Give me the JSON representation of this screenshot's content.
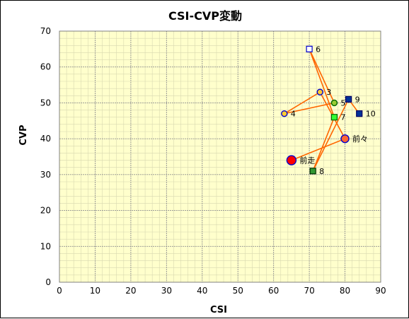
{
  "chart_data": {
    "type": "scatter",
    "title": "CSI-CVP変動",
    "xlabel": "CSI",
    "ylabel": "CVP",
    "xlim": [
      0,
      90
    ],
    "ylim": [
      0,
      70
    ],
    "x_ticks": [
      "0",
      "10",
      "20",
      "30",
      "40",
      "50",
      "60",
      "70",
      "80",
      "90"
    ],
    "y_ticks": [
      "0",
      "10",
      "20",
      "30",
      "40",
      "50",
      "60",
      "70"
    ],
    "grid": true,
    "minor_grid": true,
    "plot_background": "#ffffcc",
    "line_color": "#ff6600",
    "points": [
      {
        "label": "前走",
        "x": 65,
        "y": 34,
        "shape": "circle",
        "size": "large",
        "fill": "#ff0000",
        "stroke": "#0000cc"
      },
      {
        "label": "前々",
        "x": 80,
        "y": 40,
        "shape": "circle",
        "size": "medium",
        "fill": "#ff6633",
        "stroke": "#0000cc"
      },
      {
        "label": "3",
        "x": 73,
        "y": 53,
        "shape": "circle",
        "size": "small",
        "fill": "#ffcc33",
        "stroke": "#0000cc"
      },
      {
        "label": "4",
        "x": 63,
        "y": 47,
        "shape": "circle",
        "size": "small",
        "fill": "#ffcc33",
        "stroke": "#0000cc"
      },
      {
        "label": "5",
        "x": 77,
        "y": 50,
        "shape": "circle",
        "size": "small",
        "fill": "#99cc33",
        "stroke": "#006600"
      },
      {
        "label": "6",
        "x": 70,
        "y": 65,
        "shape": "square",
        "size": "small",
        "fill": "#ffffff",
        "stroke": "#0000cc"
      },
      {
        "label": "7",
        "x": 77,
        "y": 46,
        "shape": "square",
        "size": "small",
        "fill": "#33ff33",
        "stroke": "#006600"
      },
      {
        "label": "8",
        "x": 71,
        "y": 31,
        "shape": "square",
        "size": "small",
        "fill": "#339933",
        "stroke": "#003300"
      },
      {
        "label": "9",
        "x": 81,
        "y": 51,
        "shape": "square",
        "size": "small",
        "fill": "#003399",
        "stroke": "#000066"
      },
      {
        "label": "10",
        "x": 84,
        "y": 47,
        "shape": "square",
        "size": "small",
        "fill": "#003399",
        "stroke": "#000066"
      }
    ]
  }
}
